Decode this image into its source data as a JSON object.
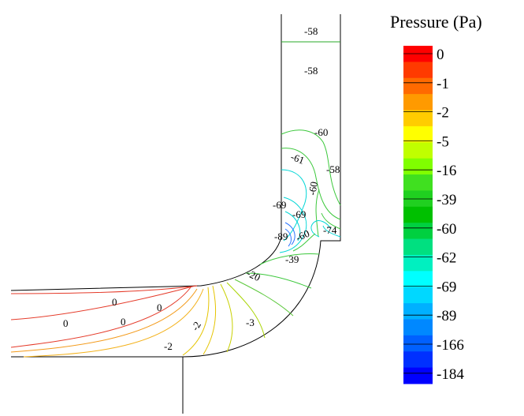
{
  "legend": {
    "title": "Pressure (Pa)",
    "bands": [
      "#ff0000",
      "#ff3a00",
      "#ff6a00",
      "#ff9a00",
      "#ffcc00",
      "#ffff00",
      "#c0ff00",
      "#80ff00",
      "#40e020",
      "#20d020",
      "#00c000",
      "#00d040",
      "#00e080",
      "#00f0c0",
      "#00ffff",
      "#00d8ff",
      "#00b0ff",
      "#0088ff",
      "#0060ff",
      "#0030ff",
      "#0000ff"
    ],
    "ticks": [
      "0",
      "-1",
      "-2",
      "-5",
      "-16",
      "-39",
      "-60",
      "-62",
      "-69",
      "-89",
      "-166",
      "-184"
    ]
  },
  "contour_labels": [
    "-58",
    "-58",
    "-60",
    "-61",
    "-58",
    "-60",
    "-69",
    "-69",
    "-89",
    "-60",
    "-74",
    "-39",
    "-20",
    "0",
    "0",
    "0",
    "0",
    "-2",
    "-3",
    "-2"
  ],
  "colors": {
    "outline": "#000000",
    "red": "#e53b2a",
    "orange": "#f39a1a",
    "yellow": "#e5c400",
    "green": "#3cc83c",
    "cyan": "#00d6d6",
    "blue": "#2a74ff"
  }
}
